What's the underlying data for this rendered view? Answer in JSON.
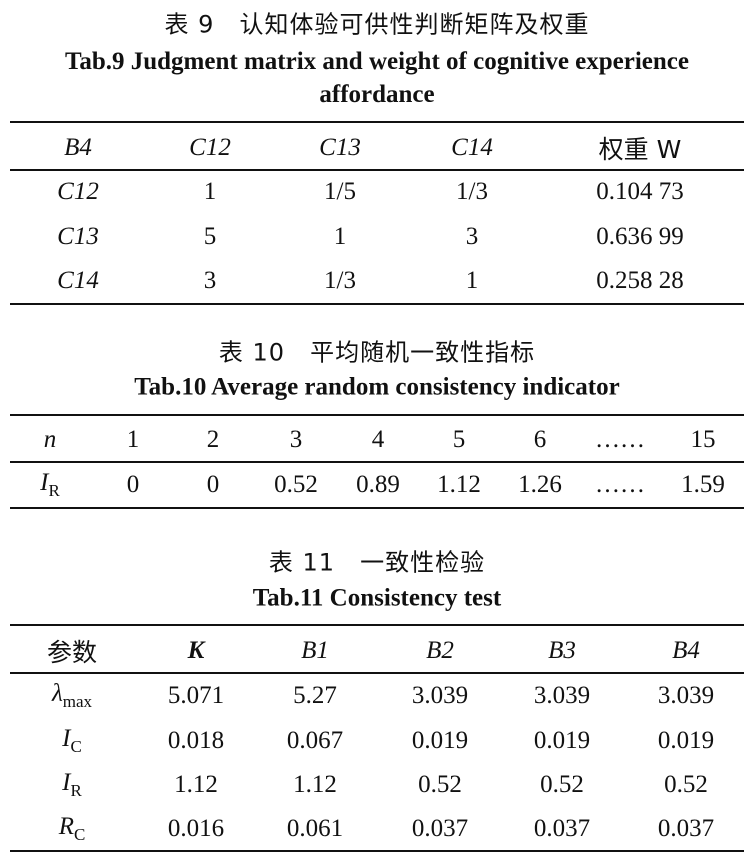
{
  "tables": [
    {
      "title_zh": "表 9　认知体验可供性判断矩阵及权重",
      "title_en": "Tab.9 Judgment matrix and weight of cognitive experience affordance",
      "rows": [
        [
          "B4",
          "C12",
          "C13",
          "C14",
          "权重 W"
        ],
        [
          "C12",
          "1",
          "1/5",
          "1/3",
          "0.104 73"
        ],
        [
          "C13",
          "5",
          "1",
          "3",
          "0.636 99"
        ],
        [
          "C14",
          "3",
          "1/3",
          "1",
          "0.258 28"
        ]
      ]
    },
    {
      "title_zh": "表 10　平均随机一致性指标",
      "title_en": "Tab.10 Average random consistency indicator",
      "rows": [
        [
          "n",
          "1",
          "2",
          "3",
          "4",
          "5",
          "6",
          "……",
          "15"
        ],
        [
          {
            "symbol": "I",
            "sub": "R"
          },
          "0",
          "0",
          "0.52",
          "0.89",
          "1.12",
          "1.26",
          "……",
          "1.59"
        ]
      ]
    },
    {
      "title_zh": "表 11　一致性检验",
      "title_en": "Tab.11 Consistency test",
      "rows": [
        [
          "参数",
          "K",
          "B1",
          "B2",
          "B3",
          "B4"
        ],
        [
          {
            "symbol": "λ",
            "sub": "max"
          },
          "5.071",
          "5.27",
          "3.039",
          "3.039",
          "3.039"
        ],
        [
          {
            "symbol": "I",
            "sub": "C"
          },
          "0.018",
          "0.067",
          "0.019",
          "0.019",
          "0.019"
        ],
        [
          {
            "symbol": "I",
            "sub": "R"
          },
          "1.12",
          "1.12",
          "0.52",
          "0.52",
          "0.52"
        ],
        [
          {
            "symbol": "R",
            "sub": "C"
          },
          "0.016",
          "0.061",
          "0.037",
          "0.037",
          "0.037"
        ]
      ]
    }
  ]
}
